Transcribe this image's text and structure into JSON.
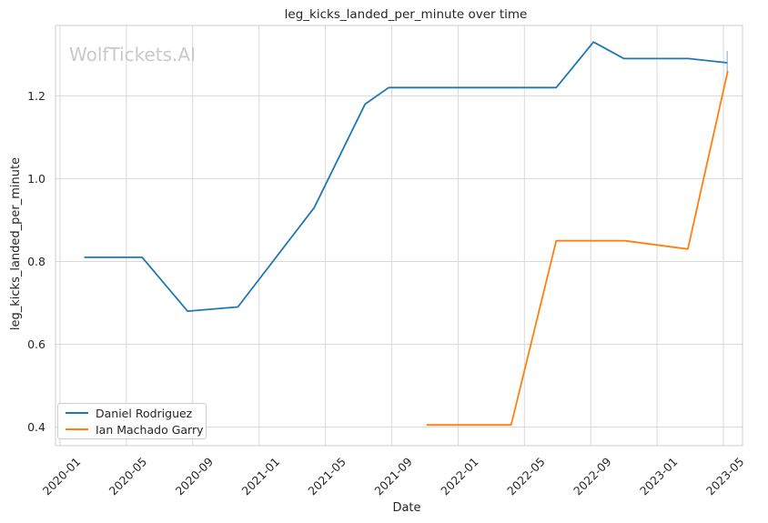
{
  "watermark": "WolfTickets.AI",
  "chart_data": {
    "type": "line",
    "title": "leg_kicks_landed_per_minute over time",
    "xlabel": "Date",
    "ylabel": "leg_kicks_landed_per_minute",
    "x_tick_labels": [
      "2020-01",
      "2020-05",
      "2020-09",
      "2021-01",
      "2021-05",
      "2021-09",
      "2022-01",
      "2022-05",
      "2022-09",
      "2023-01",
      "2023-05"
    ],
    "y_tick_labels": [
      "0.4",
      "0.6",
      "0.8",
      "1.0",
      "1.2"
    ],
    "xlim_months_from_2020_01": [
      -0.27,
      41.15
    ],
    "ylim": [
      0.355,
      1.37
    ],
    "grid": true,
    "legend_position": "lower left",
    "grid_color": "#d9d9d9",
    "spine_color": "#cccccc",
    "series": [
      {
        "name": "Daniel Rodriguez",
        "color": "#1f77b4",
        "end_cap": true,
        "points": [
          [
            "2020-02-15",
            0.81
          ],
          [
            "2020-05-30",
            0.81
          ],
          [
            "2020-08-22",
            0.68
          ],
          [
            "2020-11-23",
            0.69
          ],
          [
            "2021-04-11",
            0.93
          ],
          [
            "2021-07-13",
            1.18
          ],
          [
            "2021-08-26",
            1.22
          ],
          [
            "2022-06-29",
            1.22
          ],
          [
            "2022-09-06",
            1.33
          ],
          [
            "2022-11-01",
            1.29
          ],
          [
            "2023-02-28",
            1.29
          ],
          [
            "2023-05-08",
            1.28
          ]
        ]
      },
      {
        "name": "Ian Machado Garry",
        "color": "#ff7f0e",
        "end_cap": false,
        "points": [
          [
            "2021-11-04",
            0.405
          ],
          [
            "2022-04-07",
            0.405
          ],
          [
            "2022-06-29",
            0.85
          ],
          [
            "2022-11-03",
            0.85
          ],
          [
            "2023-02-27",
            0.83
          ],
          [
            "2023-05-09",
            1.26
          ]
        ]
      }
    ]
  }
}
